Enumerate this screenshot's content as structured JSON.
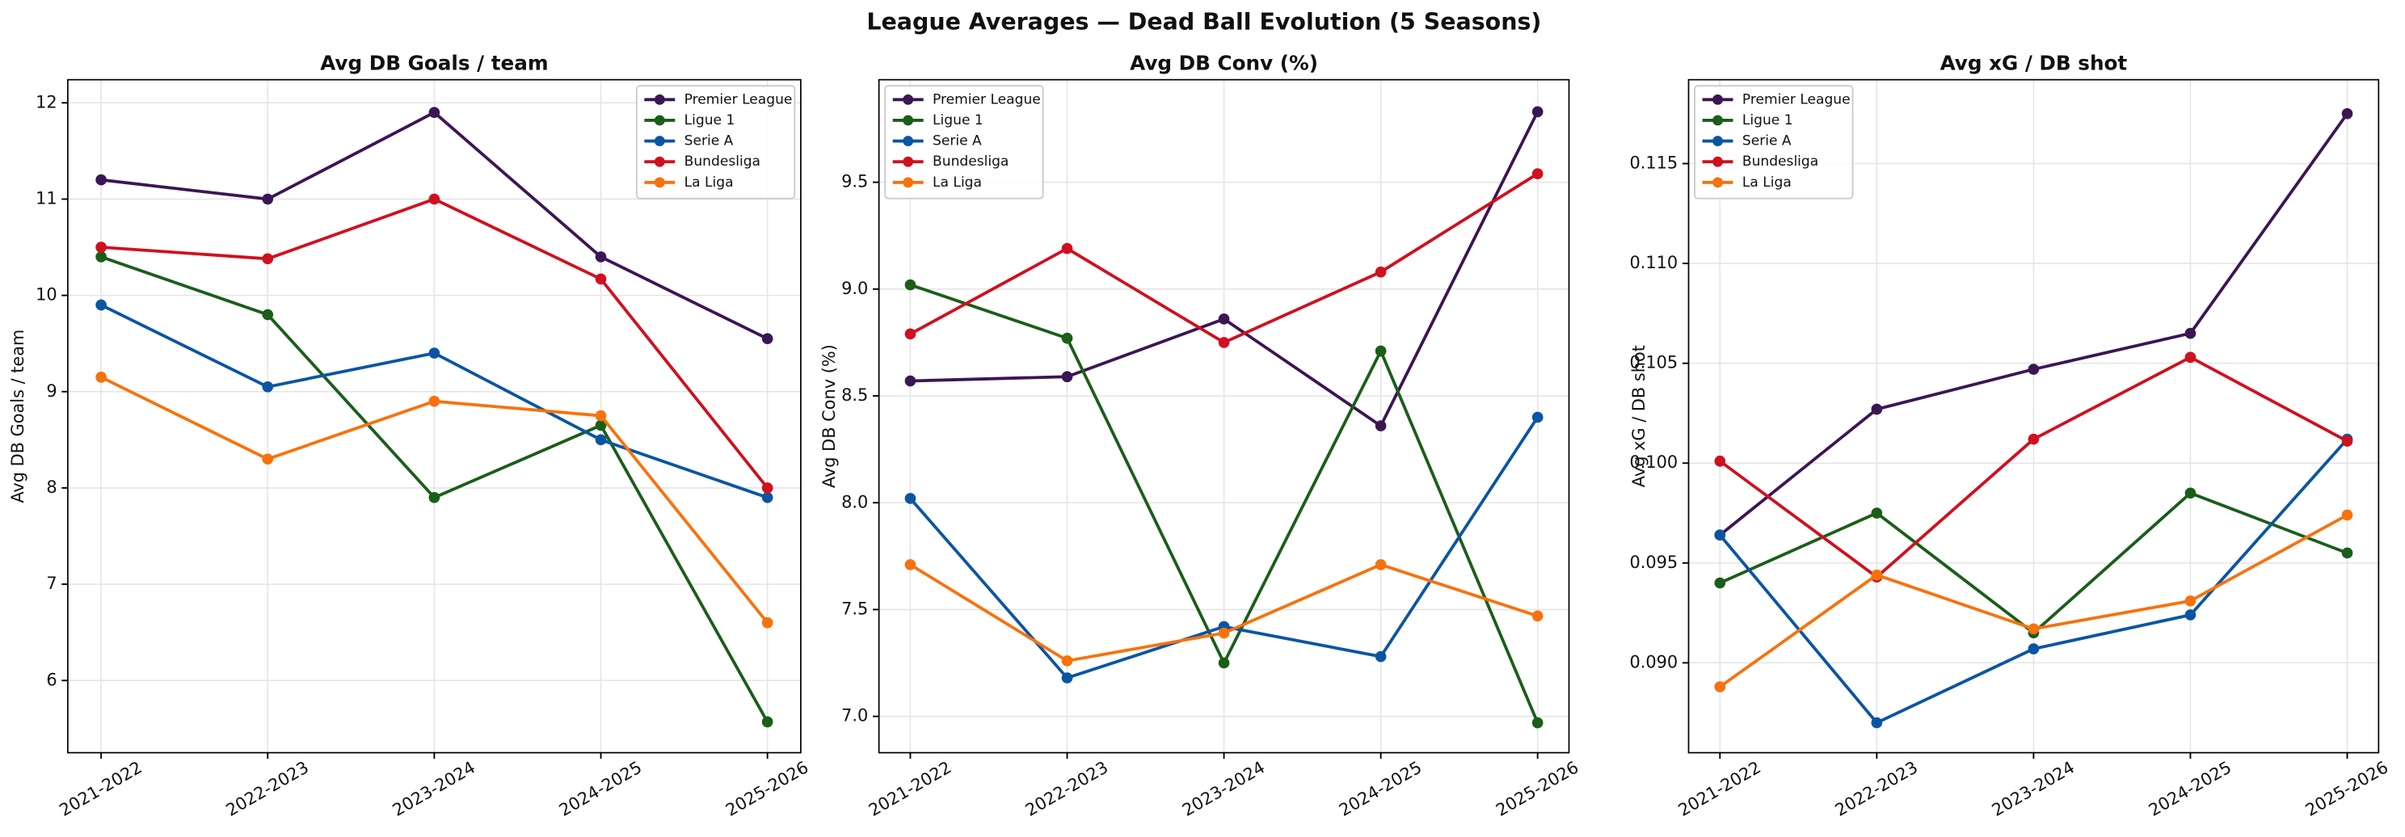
{
  "title": "League Averages — Dead Ball Evolution (5 Seasons)",
  "chart_data": [
    {
      "type": "line",
      "title": "Avg DB Goals / team",
      "y_label": "Avg DB Goals / team",
      "categories": [
        "2021-2022",
        "2022-2023",
        "2023-2024",
        "2024-2025",
        "2025-2026"
      ],
      "ylim": [
        5.25,
        12.24
      ],
      "yticks": [
        6,
        7,
        8,
        9,
        10,
        11,
        12
      ],
      "grid": true,
      "legend": "upper right",
      "series": [
        {
          "name": "Premier League",
          "color": "#3b1654",
          "values": [
            11.2,
            11.0,
            11.9,
            10.4,
            9.55
          ]
        },
        {
          "name": "Ligue 1",
          "color": "#1a5e1a",
          "values": [
            10.4,
            9.8,
            7.9,
            8.65,
            5.57
          ]
        },
        {
          "name": "Serie A",
          "color": "#0a55a3",
          "values": [
            9.9,
            9.05,
            9.4,
            8.5,
            7.9
          ]
        },
        {
          "name": "Bundesliga",
          "color": "#d0101e",
          "values": [
            10.5,
            10.38,
            11.0,
            10.17,
            8.0
          ]
        },
        {
          "name": "La Liga",
          "color": "#f7720c",
          "values": [
            9.15,
            8.3,
            8.9,
            8.75,
            6.6
          ]
        }
      ]
    },
    {
      "type": "line",
      "title": "Avg DB Conv (%)",
      "y_label": "Avg DB Conv (%)",
      "categories": [
        "2021-2022",
        "2022-2023",
        "2023-2024",
        "2024-2025",
        "2025-2026"
      ],
      "ylim": [
        6.83,
        9.98
      ],
      "yticks": [
        {
          "value": 7,
          "label": "7.0"
        },
        7.5,
        {
          "value": 8,
          "label": "8.0"
        },
        8.5,
        {
          "value": 9,
          "label": "9.0"
        },
        9.5
      ],
      "grid": true,
      "legend": "upper left",
      "series": [
        {
          "name": "Premier League",
          "color": "#3b1654",
          "values": [
            8.57,
            8.59,
            8.86,
            8.36,
            9.83
          ]
        },
        {
          "name": "Ligue 1",
          "color": "#1a5e1a",
          "values": [
            9.02,
            8.77,
            7.25,
            8.71,
            6.97
          ]
        },
        {
          "name": "Serie A",
          "color": "#0a55a3",
          "values": [
            8.02,
            7.18,
            7.42,
            7.28,
            8.4
          ]
        },
        {
          "name": "Bundesliga",
          "color": "#d0101e",
          "values": [
            8.79,
            9.19,
            8.75,
            9.08,
            9.54
          ]
        },
        {
          "name": "La Liga",
          "color": "#f7720c",
          "values": [
            7.71,
            7.26,
            7.39,
            7.71,
            7.47
          ]
        }
      ]
    },
    {
      "type": "line",
      "title": "Avg xG / DB shot",
      "y_label": "Avg xG / DB shot",
      "categories": [
        "2021-2022",
        "2022-2023",
        "2023-2024",
        "2024-2025",
        "2025-2026"
      ],
      "ylim": [
        0.0855,
        0.1192
      ],
      "yticks": [
        {
          "value": 0.09,
          "label": "0.090"
        },
        {
          "value": 0.095,
          "label": "0.095"
        },
        {
          "value": 0.1,
          "label": "0.100"
        },
        {
          "value": 0.105,
          "label": "0.105"
        },
        {
          "value": 0.11,
          "label": "0.110"
        },
        {
          "value": 0.115,
          "label": "0.115"
        }
      ],
      "grid": true,
      "legend": "upper left",
      "series": [
        {
          "name": "Premier League",
          "color": "#3b1654",
          "values": [
            0.0964,
            0.1027,
            0.1047,
            0.1065,
            0.1175
          ]
        },
        {
          "name": "Ligue 1",
          "color": "#1a5e1a",
          "values": [
            0.094,
            0.0975,
            0.0915,
            0.0985,
            0.0955
          ]
        },
        {
          "name": "Serie A",
          "color": "#0a55a3",
          "values": [
            0.0964,
            0.087,
            0.0907,
            0.0924,
            0.1012
          ]
        },
        {
          "name": "Bundesliga",
          "color": "#d0101e",
          "values": [
            0.1001,
            0.0943,
            0.1012,
            0.1053,
            0.1011
          ]
        },
        {
          "name": "La Liga",
          "color": "#f7720c",
          "values": [
            0.0888,
            0.0944,
            0.0917,
            0.0931,
            0.0974
          ]
        }
      ]
    }
  ]
}
